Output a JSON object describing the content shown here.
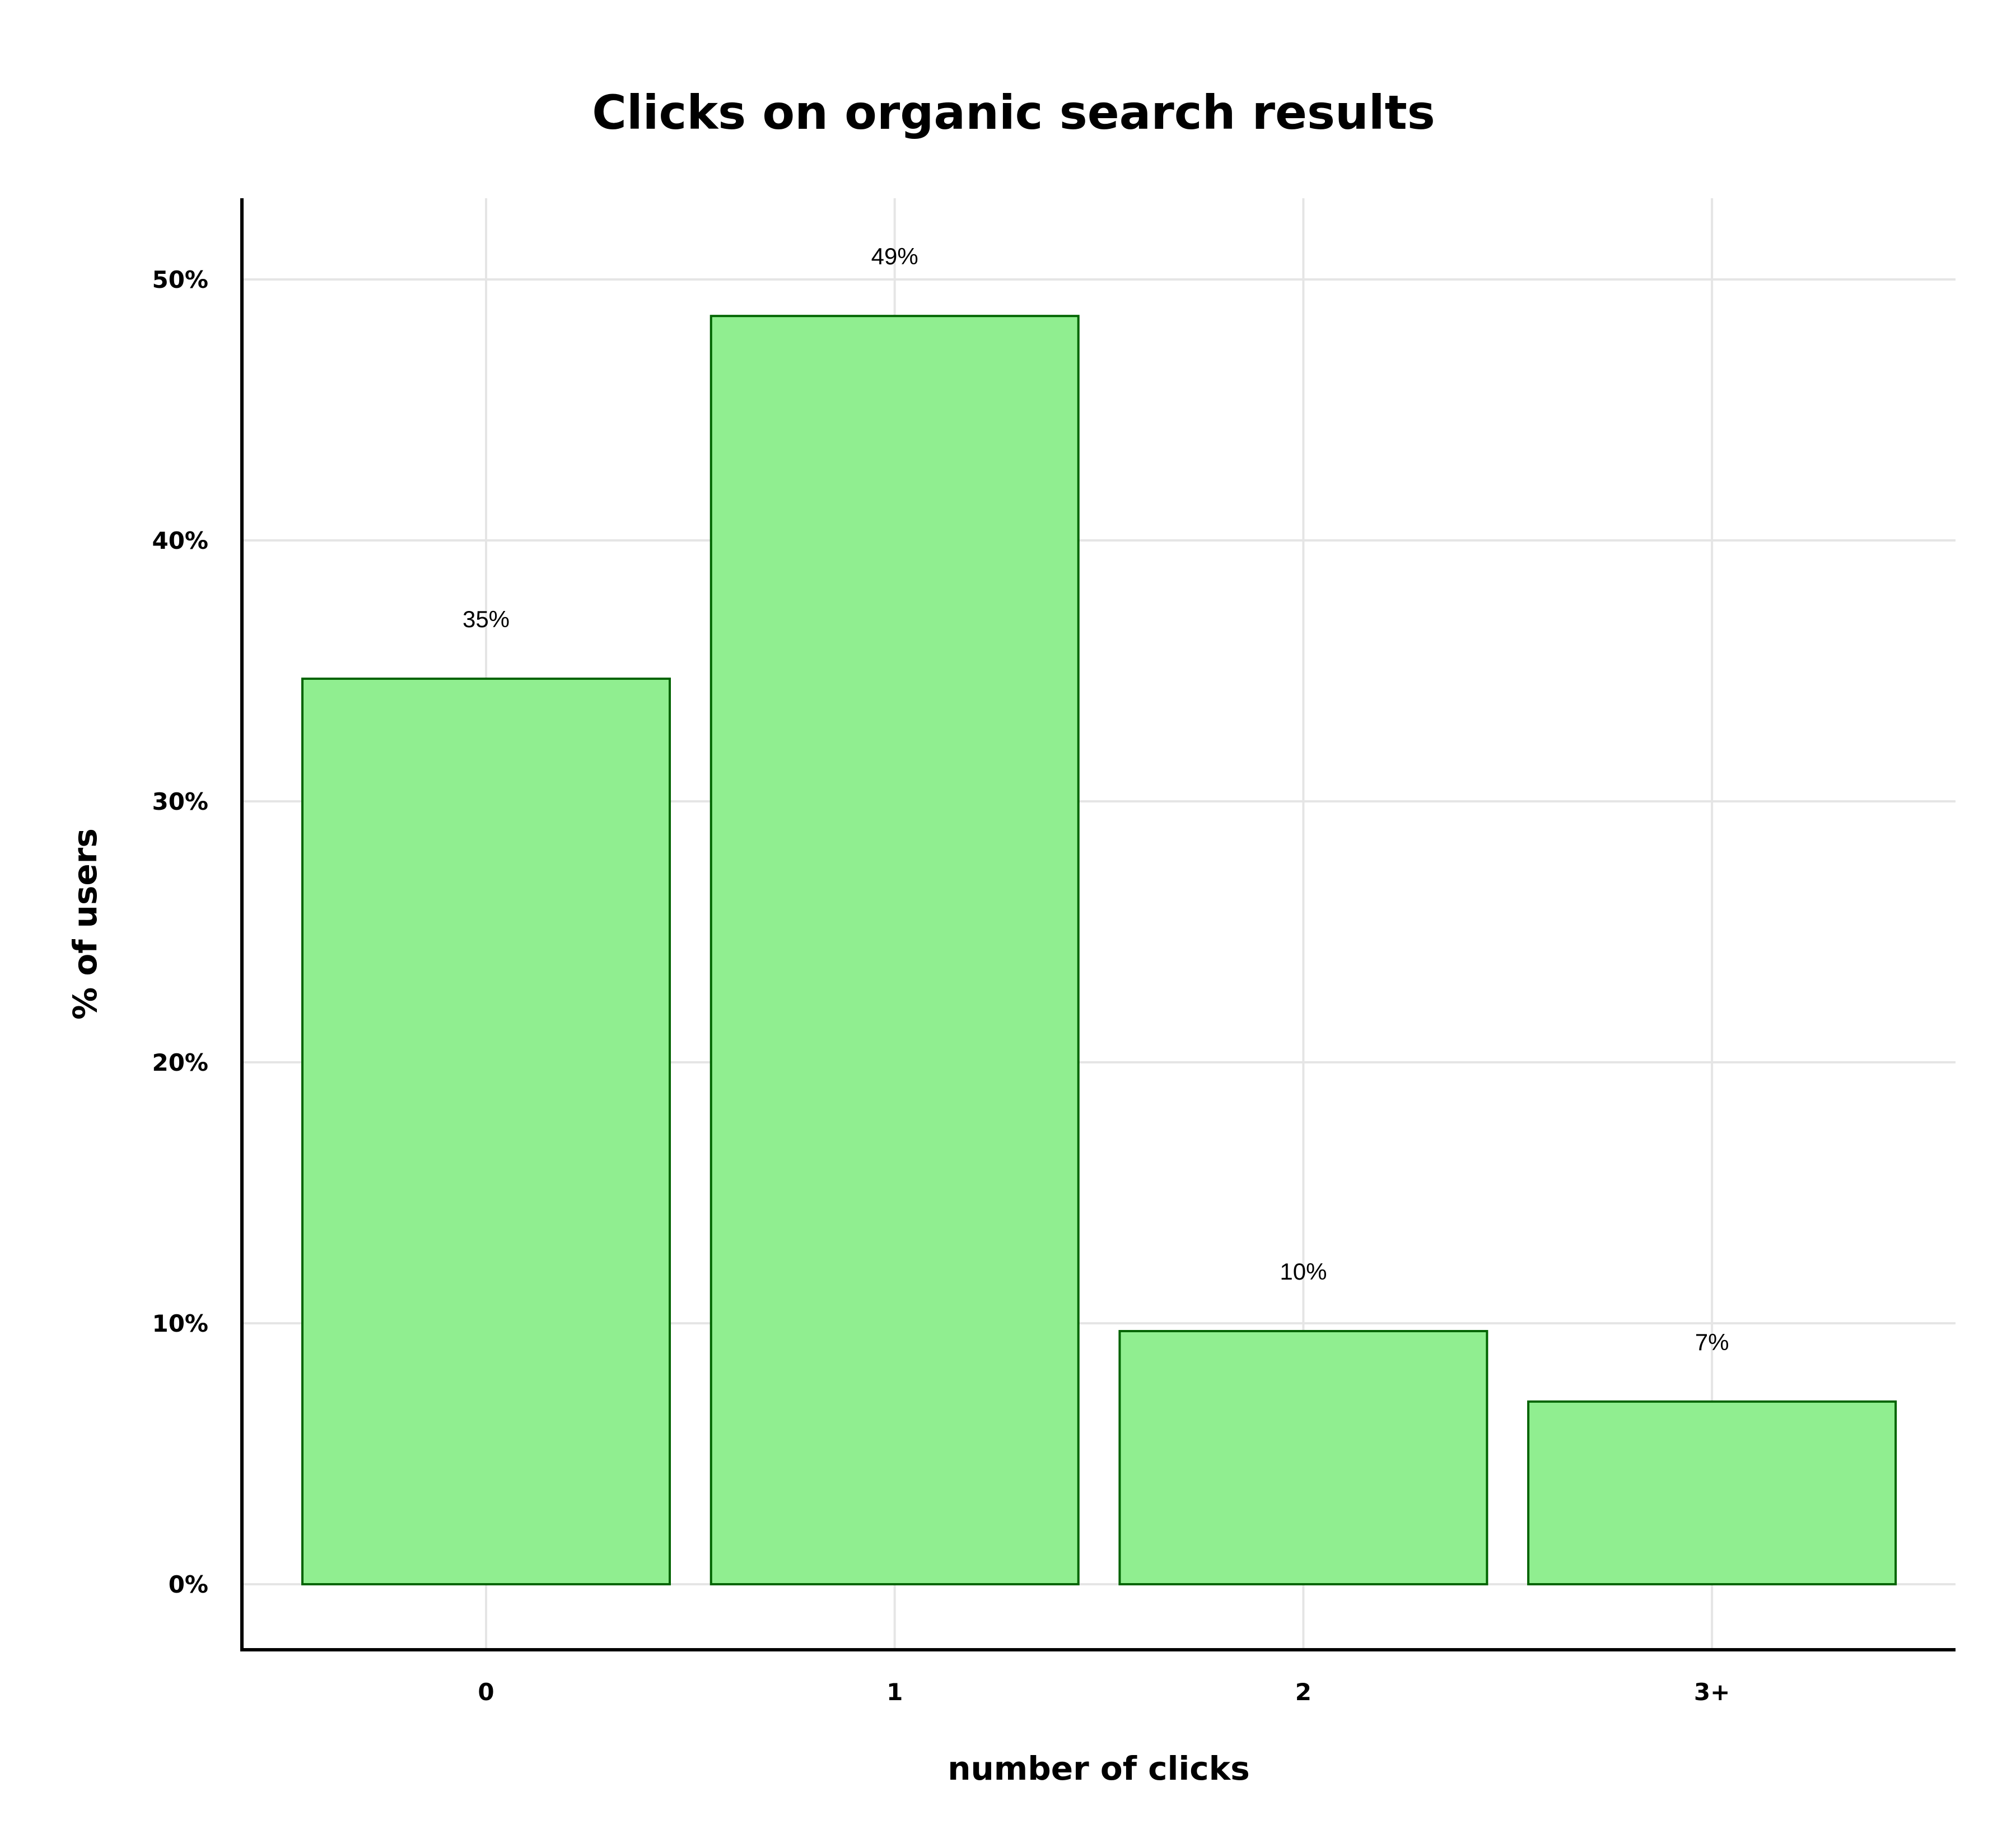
{
  "chart_data": {
    "type": "bar",
    "title": "Clicks on organic search results",
    "xlabel": "number of clicks",
    "ylabel": "% of users",
    "categories": [
      "0",
      "1",
      "2",
      "3+"
    ],
    "values": [
      34.7,
      48.6,
      9.7,
      7.0
    ],
    "data_labels": [
      "35%",
      "49%",
      "10%",
      "7%"
    ],
    "y_ticks": [
      0,
      10,
      20,
      30,
      40,
      50
    ],
    "y_tick_labels": [
      "0%",
      "10%",
      "20%",
      "30%",
      "40%",
      "50%"
    ],
    "ylim": [
      -2.5,
      53.1
    ],
    "grid": true,
    "legend": "none",
    "colors": {
      "bar_fill": "#90ee90",
      "bar_stroke": "#006400",
      "grid": "#e5e5e5",
      "axis": "#000000"
    }
  }
}
